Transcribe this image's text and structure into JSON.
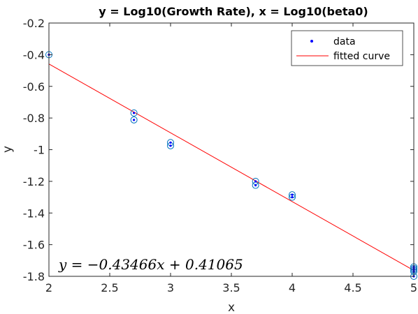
{
  "chart_data": {
    "type": "scatter",
    "title": "y = Log10(Growth Rate), x = Log10(beta0)",
    "xlabel": "x",
    "ylabel": "y",
    "xlim": [
      2,
      5
    ],
    "ylim": [
      -1.8,
      -0.2
    ],
    "xticks": [
      2,
      2.5,
      3,
      3.5,
      4,
      4.5,
      5
    ],
    "xtick_labels": [
      "2",
      "2.5",
      "3",
      "3.5",
      "4",
      "4.5",
      "5"
    ],
    "yticks": [
      -1.8,
      -1.6,
      -1.4,
      -1.2,
      -1,
      -0.8,
      -0.6,
      -0.4,
      -0.2
    ],
    "ytick_labels": [
      "-1.8",
      "-1.6",
      "-1.4",
      "-1.2",
      "-1",
      "-0.8",
      "-0.6",
      "-0.4",
      "-0.2"
    ],
    "grid": false,
    "legend_position": "top-right",
    "series": [
      {
        "name": "data",
        "kind": "points",
        "color": "#0000ff",
        "marker": "dot",
        "x": [
          2,
          2,
          2.699,
          2.699,
          3,
          3,
          3.699,
          3.699,
          4,
          4,
          5,
          5,
          5,
          5,
          5
        ],
        "y": [
          -0.4,
          -0.4,
          -0.768,
          -0.812,
          -0.955,
          -0.975,
          -1.2,
          -1.225,
          -1.285,
          -1.3,
          -1.74,
          -1.75,
          -1.76,
          -1.77,
          -1.8
        ]
      },
      {
        "name": "fitted curve",
        "kind": "line",
        "color": "#ff0000",
        "slope": -0.43466,
        "intercept": 0.41065,
        "x": [
          2,
          5
        ],
        "y": [
          -0.45867,
          -1.76265
        ]
      }
    ],
    "outlier_circles": {
      "color": "#0072bd",
      "x": [
        2,
        2.699,
        2.699,
        3,
        3,
        3.699,
        3.699,
        4,
        4,
        5,
        5,
        5,
        5,
        5
      ],
      "y": [
        -0.4,
        -0.768,
        -0.812,
        -0.955,
        -0.975,
        -1.2,
        -1.225,
        -1.285,
        -1.3,
        -1.74,
        -1.75,
        -1.76,
        -1.77,
        -1.8
      ]
    },
    "annotation": "y = −0.43466x + 0.41065"
  }
}
